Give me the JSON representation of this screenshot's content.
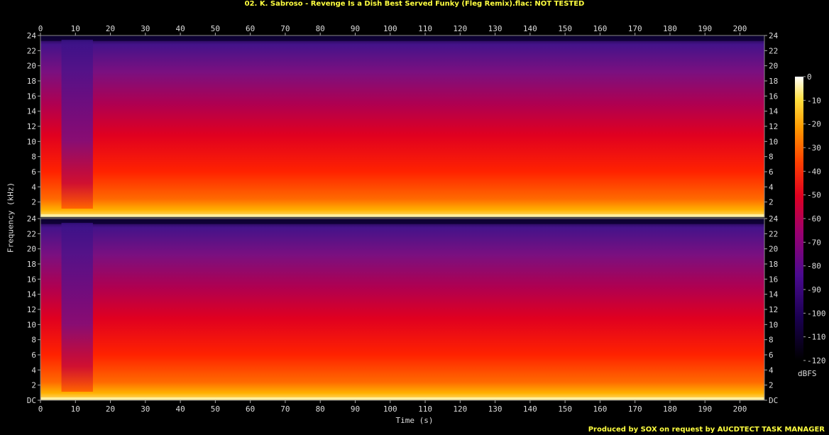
{
  "title": "02. K. Sabroso - Revenge Is a Dish Best Served Funky (Fleg Remix).flac: NOT TESTED",
  "footer": "Produced by SOX on request by AUCDTECT TASK MANAGER",
  "chart_data": {
    "type": "heatmap",
    "xlabel": "Time (s)",
    "ylabel": "Frequency (kHz)",
    "xlim": [
      0,
      207
    ],
    "x_ticks": [
      0,
      10,
      20,
      30,
      40,
      50,
      60,
      70,
      80,
      90,
      100,
      110,
      120,
      130,
      140,
      150,
      160,
      170,
      180,
      190,
      200
    ],
    "channels": [
      {
        "ylim": [
          0,
          24
        ],
        "y_tick_labels": [
          "24",
          "22",
          "20",
          "18",
          "16",
          "14",
          "12",
          "10",
          "8",
          "6",
          "4",
          "2"
        ]
      },
      {
        "ylim": [
          0,
          24
        ],
        "y_tick_labels": [
          "24",
          "22",
          "20",
          "18",
          "16",
          "14",
          "12",
          "10",
          "8",
          "6",
          "4",
          "2",
          "DC"
        ]
      }
    ],
    "colorbar": {
      "label": "dBFS",
      "range": [
        -120,
        0
      ],
      "tick_labels": [
        "0",
        "-10",
        "-20",
        "-30",
        "-40",
        "-50",
        "-60",
        "-70",
        "-80",
        "-90",
        "-100",
        "-110",
        "-120"
      ]
    }
  },
  "colors": {
    "background": "#000000",
    "title": "#ffff40",
    "text": "#dddddd"
  }
}
